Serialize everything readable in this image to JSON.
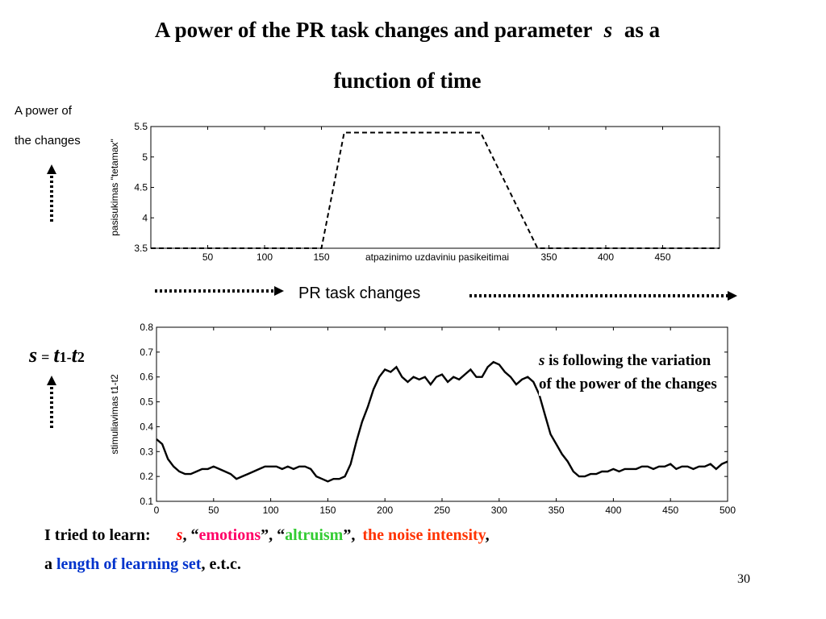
{
  "slide": {
    "title_part1": "A power of the PR task changes and parameter",
    "title_var": "s",
    "title_part2": "as a",
    "title_line2": "function of time",
    "top_side_label_line1": "A power of",
    "top_side_label_line2": "the changes",
    "pr_task_label": "PR task changes",
    "s_formula": {
      "s": "s",
      "eq": "=",
      "t1": "t",
      "one": "1",
      "minus": "-",
      "t2": "t",
      "two": "2"
    },
    "note": {
      "var": "s",
      "line1_rest": " is following the variation",
      "line2": "of the power of the changes"
    },
    "learn": {
      "intro": "I tried to learn:",
      "s": "s",
      "sep1": ", “",
      "emotions": "emotions",
      "sep2": "”, “",
      "altruism": "altruism",
      "sep3": "”,",
      "noise": "the noise intensity",
      "sep4": ",",
      "line2_a": "a",
      "length": "length of learning set",
      "line2_end": ", e.t.c."
    },
    "page_number": "30",
    "colors": {
      "emotions": "#ff0066",
      "altruism": "#33cc33",
      "noise": "#ff3300",
      "length": "#0033cc",
      "s_learn": "#ff0000",
      "line": "#000000"
    }
  },
  "chart_data": [
    {
      "type": "line",
      "xlabel": "atpazinimo uzdaviniu pasikeitimai",
      "ylabel": "pasisukimas \"tetamax\"",
      "xlim": [
        0,
        500
      ],
      "ylim": [
        3.5,
        5.5
      ],
      "x_ticks": [
        50,
        100,
        150,
        350,
        400,
        450
      ],
      "y_ticks": [
        3.5,
        4,
        4.5,
        5,
        5.5
      ],
      "line_style": "dashed",
      "x": [
        0,
        150,
        170,
        290,
        340,
        500
      ],
      "y": [
        3.5,
        3.5,
        5.4,
        5.4,
        3.5,
        3.5
      ]
    },
    {
      "type": "line",
      "xlabel": "",
      "ylabel": "stimuliavimas  t1-t2",
      "xlim": [
        0,
        500
      ],
      "ylim": [
        0.1,
        0.8
      ],
      "x_ticks": [
        0,
        50,
        100,
        150,
        200,
        250,
        300,
        350,
        400,
        450,
        500
      ],
      "y_ticks": [
        0.1,
        0.2,
        0.3,
        0.4,
        0.5,
        0.6,
        0.7,
        0.8
      ],
      "line_style": "solid",
      "x": [
        0,
        5,
        10,
        15,
        20,
        25,
        30,
        35,
        40,
        45,
        50,
        55,
        60,
        65,
        70,
        75,
        80,
        85,
        90,
        95,
        100,
        105,
        110,
        115,
        120,
        125,
        130,
        135,
        140,
        145,
        150,
        155,
        160,
        165,
        170,
        175,
        180,
        185,
        190,
        195,
        200,
        205,
        210,
        215,
        220,
        225,
        230,
        235,
        240,
        245,
        250,
        255,
        260,
        265,
        270,
        275,
        280,
        285,
        290,
        295,
        300,
        305,
        310,
        315,
        320,
        325,
        330,
        335,
        340,
        345,
        350,
        355,
        360,
        365,
        370,
        375,
        380,
        385,
        390,
        395,
        400,
        405,
        410,
        415,
        420,
        425,
        430,
        435,
        440,
        445,
        450,
        455,
        460,
        465,
        470,
        475,
        480,
        485,
        490,
        495,
        500
      ],
      "y": [
        0.35,
        0.33,
        0.27,
        0.24,
        0.22,
        0.21,
        0.21,
        0.22,
        0.23,
        0.23,
        0.24,
        0.23,
        0.22,
        0.21,
        0.19,
        0.2,
        0.21,
        0.22,
        0.23,
        0.24,
        0.24,
        0.24,
        0.23,
        0.24,
        0.23,
        0.24,
        0.24,
        0.23,
        0.2,
        0.19,
        0.18,
        0.19,
        0.19,
        0.2,
        0.25,
        0.34,
        0.42,
        0.48,
        0.55,
        0.6,
        0.63,
        0.62,
        0.64,
        0.6,
        0.58,
        0.6,
        0.59,
        0.6,
        0.57,
        0.6,
        0.61,
        0.58,
        0.6,
        0.59,
        0.61,
        0.63,
        0.6,
        0.6,
        0.64,
        0.66,
        0.65,
        0.62,
        0.6,
        0.57,
        0.59,
        0.6,
        0.58,
        0.53,
        0.45,
        0.37,
        0.33,
        0.29,
        0.26,
        0.22,
        0.2,
        0.2,
        0.21,
        0.21,
        0.22,
        0.22,
        0.23,
        0.22,
        0.23,
        0.23,
        0.23,
        0.24,
        0.24,
        0.23,
        0.24,
        0.24,
        0.25,
        0.23,
        0.24,
        0.24,
        0.23,
        0.24,
        0.24,
        0.25,
        0.23,
        0.25,
        0.26
      ]
    }
  ]
}
